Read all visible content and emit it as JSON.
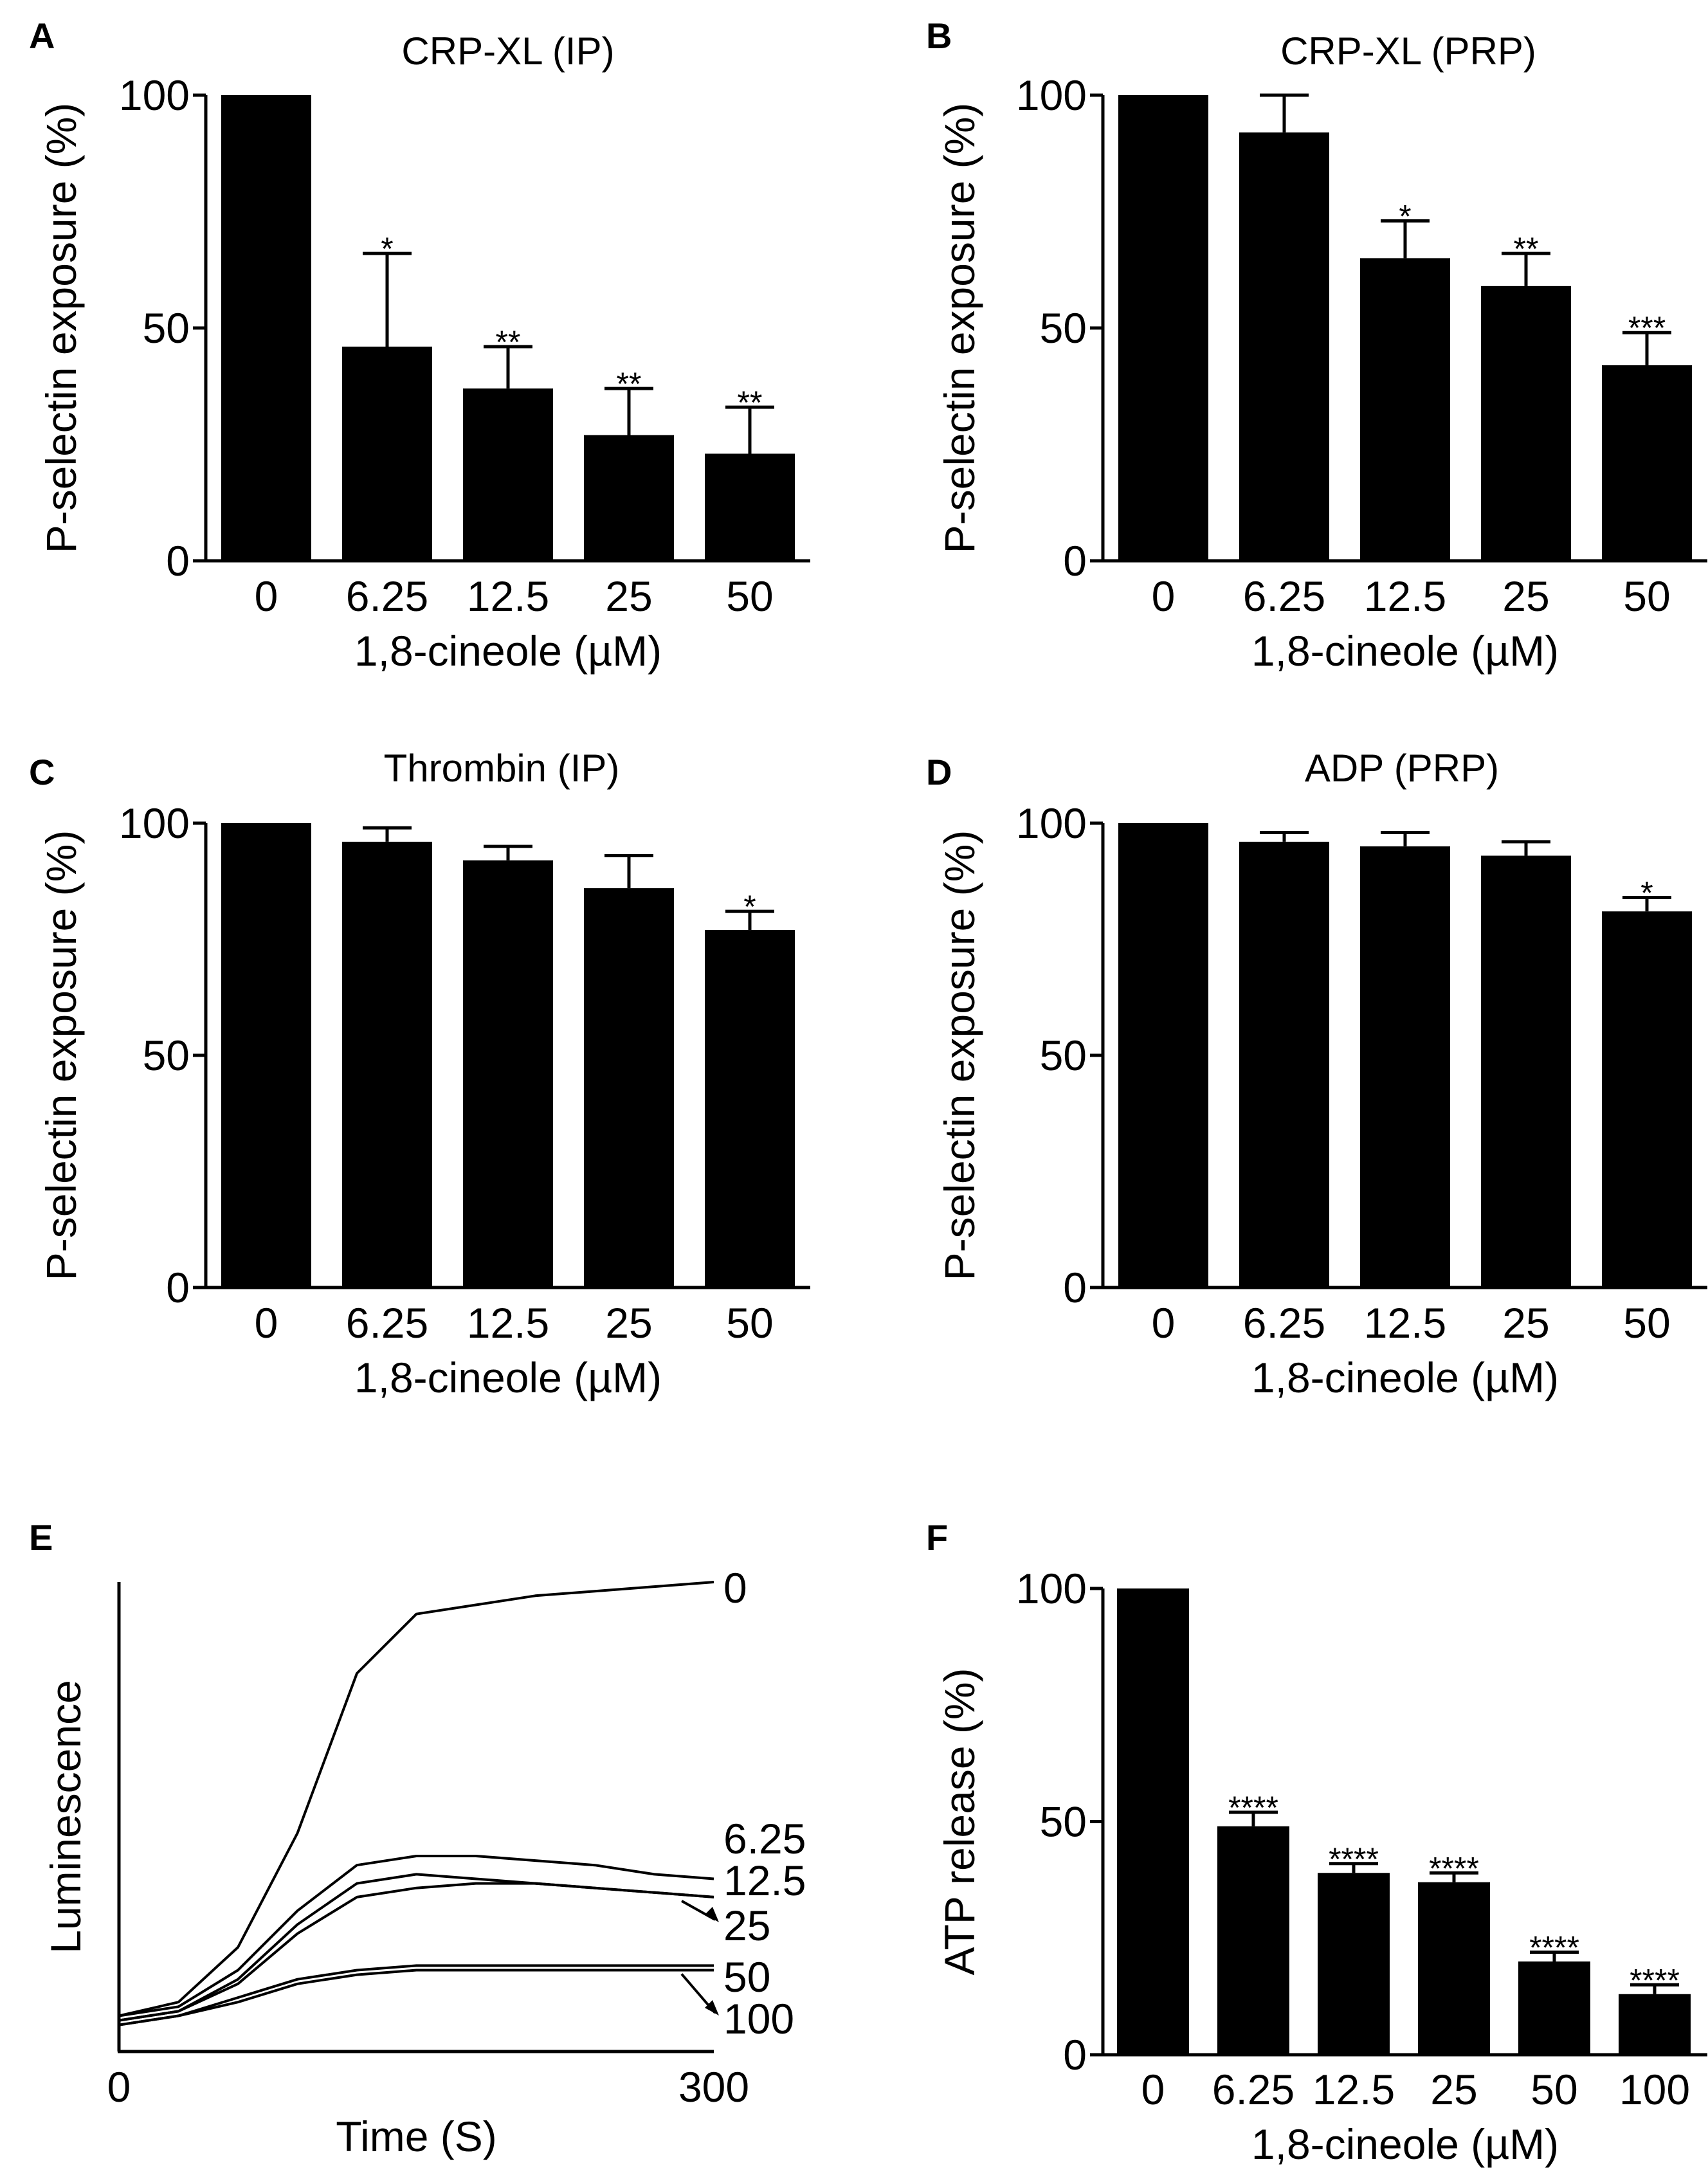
{
  "chart_data": [
    {
      "panel": "A",
      "type": "bar",
      "title": "CRP-XL (IP)",
      "xlabel": "1,8-cineole (µM)",
      "ylabel": "P-selectin exposure (%)",
      "ylim": [
        0,
        100
      ],
      "yticks": [
        "0",
        "50",
        "100"
      ],
      "categories": [
        "0",
        "6.25",
        "12.5",
        "25",
        "50"
      ],
      "values": [
        100,
        46,
        37,
        27,
        23
      ],
      "errors": [
        0,
        20,
        9,
        10,
        10
      ],
      "significance": [
        "",
        "*",
        "**",
        "**",
        "**"
      ],
      "color": "#000000"
    },
    {
      "panel": "B",
      "type": "bar",
      "title": "CRP-XL (PRP)",
      "xlabel": "1,8-cineole (µM)",
      "ylabel": "P-selectin exposure (%)",
      "ylim": [
        0,
        100
      ],
      "yticks": [
        "0",
        "50",
        "100"
      ],
      "categories": [
        "0",
        "6.25",
        "12.5",
        "25",
        "50"
      ],
      "values": [
        100,
        92,
        65,
        59,
        42
      ],
      "errors": [
        0,
        8,
        8,
        7,
        7
      ],
      "significance": [
        "",
        "",
        "*",
        "**",
        "***"
      ],
      "color": "#000000"
    },
    {
      "panel": "C",
      "type": "bar",
      "title": "Thrombin (IP)",
      "xlabel": "1,8-cineole (µM)",
      "ylabel": "P-selectin exposure (%)",
      "ylim": [
        0,
        100
      ],
      "yticks": [
        "0",
        "50",
        "100"
      ],
      "categories": [
        "0",
        "6.25",
        "12.5",
        "25",
        "50"
      ],
      "values": [
        100,
        96,
        92,
        86,
        77
      ],
      "errors": [
        0,
        3,
        3,
        7,
        4
      ],
      "significance": [
        "",
        "",
        "",
        "",
        "*"
      ],
      "color": "#000000"
    },
    {
      "panel": "D",
      "type": "bar",
      "title": "ADP (PRP)",
      "xlabel": "1,8-cineole (µM)",
      "ylabel": "P-selectin exposure (%)",
      "ylim": [
        0,
        100
      ],
      "yticks": [
        "0",
        "50",
        "100"
      ],
      "categories": [
        "0",
        "6.25",
        "12.5",
        "25",
        "50"
      ],
      "values": [
        100,
        96,
        95,
        93,
        81
      ],
      "errors": [
        0,
        2,
        3,
        3,
        3
      ],
      "significance": [
        "",
        "",
        "",
        "",
        "*"
      ],
      "color": "#000000"
    },
    {
      "panel": "E",
      "type": "line",
      "title": "",
      "xlabel": "Time (S)",
      "ylabel": "Luminescence",
      "xlim": [
        0,
        300
      ],
      "xticks": [
        "0",
        "300"
      ],
      "ylim": [
        0,
        100
      ],
      "series": [
        {
          "name": "0",
          "x": [
            0,
            30,
            60,
            90,
            120,
            150,
            180,
            210,
            240,
            270,
            300
          ],
          "y": [
            5,
            8,
            20,
            45,
            80,
            93,
            95,
            97,
            98,
            99,
            100
          ]
        },
        {
          "name": "6.25",
          "x": [
            0,
            30,
            60,
            90,
            120,
            150,
            180,
            210,
            240,
            270,
            300
          ],
          "y": [
            5,
            7,
            15,
            28,
            38,
            40,
            40,
            39,
            38,
            36,
            35
          ]
        },
        {
          "name": "12.5",
          "x": [
            0,
            30,
            60,
            90,
            120,
            150,
            180,
            210,
            240,
            270,
            300
          ],
          "y": [
            4,
            6,
            13,
            25,
            34,
            36,
            35,
            34,
            33,
            32,
            31
          ]
        },
        {
          "name": "25",
          "x": [
            0,
            30,
            60,
            90,
            120,
            150,
            180,
            210,
            240,
            270,
            300
          ],
          "y": [
            4,
            6,
            12,
            23,
            31,
            33,
            34,
            34,
            33,
            32,
            31
          ]
        },
        {
          "name": "50",
          "x": [
            0,
            30,
            60,
            90,
            120,
            150,
            180,
            210,
            240,
            270,
            300
          ],
          "y": [
            3,
            5,
            9,
            13,
            15,
            16,
            16,
            16,
            16,
            16,
            16
          ]
        },
        {
          "name": "100",
          "x": [
            0,
            30,
            60,
            90,
            120,
            150,
            180,
            210,
            240,
            270,
            300
          ],
          "y": [
            3,
            5,
            8,
            12,
            14,
            15,
            15,
            15,
            15,
            15,
            15
          ]
        }
      ],
      "curve_labels": [
        "0",
        "6.25",
        "12.5",
        "25",
        "50",
        "100"
      ],
      "color": "#000000"
    },
    {
      "panel": "F",
      "type": "bar",
      "title": "",
      "xlabel": "1,8-cineole (µM)",
      "ylabel": "ATP release (%)",
      "ylim": [
        0,
        100
      ],
      "yticks": [
        "0",
        "50",
        "100"
      ],
      "categories": [
        "0",
        "6.25",
        "12.5",
        "25",
        "50",
        "100"
      ],
      "values": [
        100,
        49,
        39,
        37,
        20,
        13
      ],
      "errors": [
        0,
        3,
        2,
        2,
        2,
        2
      ],
      "significance": [
        "",
        "****",
        "****",
        "****",
        "****",
        "****"
      ],
      "color": "#000000"
    }
  ]
}
